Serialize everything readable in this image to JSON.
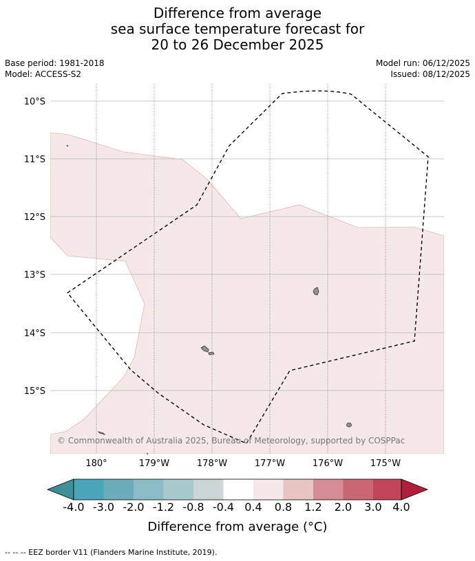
{
  "title": {
    "line1": "Difference from average",
    "line2": "sea surface temperature forecast for",
    "line3": "20 to 26 December 2025"
  },
  "meta": {
    "base_period": "Base period: 1981-2018",
    "model": "Model: ACCESS-S2",
    "model_run": "Model run: 06/12/2025",
    "issued": "Issued: 08/12/2025"
  },
  "map": {
    "lat_labels": [
      "10°S",
      "11°S",
      "12°S",
      "13°S",
      "14°S",
      "15°S"
    ],
    "lon_labels": [
      "180°",
      "179°W",
      "178°W",
      "177°W",
      "176°W",
      "175°W"
    ],
    "copyright": "© Commonwealth of Australia 2025, Bureau of Meteorology, supported by COSPPac",
    "anomaly_fill_color": "#f5e8e6",
    "land_color": "#9a8f8f"
  },
  "colorbar": {
    "ticks": [
      "-4.0",
      "-3.0",
      "-2.0",
      "-1.2",
      "-0.8",
      "-0.4",
      "0.4",
      "0.8",
      "1.2",
      "2.0",
      "3.0",
      "4.0"
    ],
    "colors": [
      "#3f8f9a",
      "#4ba5b8",
      "#6aacb9",
      "#8bbcc7",
      "#a9c8cc",
      "#cdd6d7",
      "#ffffff",
      "#f5e8e6",
      "#e8c5c1",
      "#d78d95",
      "#c96874",
      "#c2465a",
      "#b01e3d"
    ],
    "label": "Difference from average (°C)"
  },
  "footer": "--  --  -- EEZ border V11 (Flanders Marine Institute, 2019)."
}
